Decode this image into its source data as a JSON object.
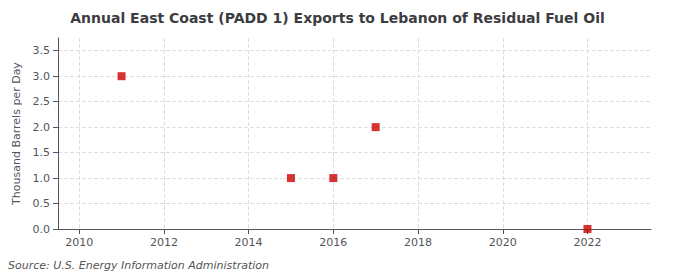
{
  "chart_data": {
    "type": "scatter",
    "title": "Annual East Coast (PADD 1) Exports to Lebanon of Residual Fuel Oil",
    "ylabel": "Thousand Barrels per Day",
    "annotations": [
      "Source: U.S. Energy Information Administration"
    ],
    "x": [
      2011,
      2015,
      2016,
      2017,
      2022
    ],
    "values": [
      3.0,
      1.0,
      1.0,
      2.0,
      0.0
    ],
    "color": "#cc0000",
    "marker": "square",
    "xlim": [
      2009.5,
      2023.5
    ],
    "xticks": [
      2010,
      2012,
      2014,
      2016,
      2018,
      2020,
      2022
    ],
    "ylim": [
      0.0,
      3.75
    ],
    "yticks": [
      {
        "value": 0.0,
        "label": "0.0"
      },
      0.5,
      {
        "value": 1.0,
        "label": "1.0"
      },
      1.5,
      {
        "value": 2.0,
        "label": "2.0"
      },
      2.5,
      {
        "value": 3.0,
        "label": "3.0"
      },
      3.5
    ],
    "grid": true
  }
}
